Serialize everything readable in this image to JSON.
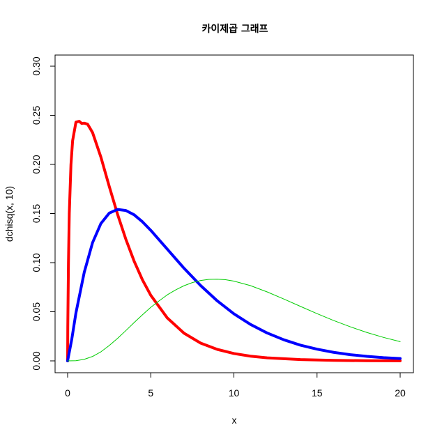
{
  "chart_data": {
    "type": "line",
    "title": "카이제곱 그래프",
    "xlabel": "x",
    "ylabel": "dchisq(x, 10)",
    "xlim": [
      0,
      20
    ],
    "ylim": [
      0,
      0.3
    ],
    "x_ticks": [
      "0",
      "5",
      "10",
      "15",
      "20"
    ],
    "y_ticks": [
      "0.00",
      "0.05",
      "0.10",
      "0.15",
      "0.20",
      "0.25",
      "0.30"
    ],
    "grid": false,
    "legend": "none",
    "series": [
      {
        "color": "#ff0000",
        "line_width": "thick",
        "x": [
          0,
          0.01,
          0.05,
          0.1,
          0.2,
          0.3,
          0.5,
          0.7,
          0.85,
          1.0,
          1.2,
          1.5,
          2.0,
          2.5,
          3.0,
          3.5,
          4.0,
          4.5,
          5.0,
          6.0,
          7.0,
          8.0,
          9.0,
          10.0,
          11.0,
          12.0,
          14.0,
          16.0,
          18.0,
          20.0
        ],
        "y": [
          0,
          0.0347,
          0.0992,
          0.1504,
          0.1997,
          0.2241,
          0.243,
          0.2439,
          0.2417,
          0.242,
          0.241,
          0.2324,
          0.2075,
          0.1778,
          0.1494,
          0.1239,
          0.1015,
          0.0825,
          0.0668,
          0.0436,
          0.0282,
          0.0181,
          0.0117,
          0.0075,
          0.0048,
          0.0031,
          0.0013,
          0.0005,
          0.0002,
          0.0001
        ]
      },
      {
        "color": "#0000ff",
        "line_width": "thick",
        "x": [
          0,
          0.25,
          0.5,
          1.0,
          1.5,
          2.0,
          2.5,
          3.0,
          3.5,
          4.0,
          4.5,
          5.0,
          6.0,
          7.0,
          8.0,
          9.0,
          10.0,
          11.0,
          12.0,
          13.0,
          14.0,
          15.0,
          16.0,
          17.0,
          18.0,
          19.0,
          20.0
        ],
        "y": [
          0,
          0.0221,
          0.0488,
          0.0902,
          0.1204,
          0.1398,
          0.1504,
          0.1542,
          0.1531,
          0.1487,
          0.1416,
          0.1329,
          0.1136,
          0.0943,
          0.0767,
          0.0611,
          0.0479,
          0.0371,
          0.0284,
          0.0215,
          0.016,
          0.0119,
          0.0087,
          0.0063,
          0.0046,
          0.0033,
          0.0024
        ]
      },
      {
        "color": "#00cc00",
        "line_width": "thin",
        "x": [
          0,
          0.5,
          1.0,
          1.5,
          2.0,
          2.5,
          3.0,
          3.5,
          4.0,
          4.5,
          5.0,
          5.5,
          6.0,
          6.5,
          7.0,
          7.5,
          8.0,
          8.5,
          9.0,
          9.5,
          10.0,
          11.0,
          12.0,
          13.0,
          14.0,
          15.0,
          16.0,
          17.0,
          18.0,
          19.0,
          20.0
        ],
        "y": [
          0,
          0.0002,
          0.0016,
          0.0045,
          0.0092,
          0.0156,
          0.0229,
          0.0308,
          0.039,
          0.0469,
          0.0545,
          0.0611,
          0.0673,
          0.0723,
          0.0765,
          0.0797,
          0.0818,
          0.083,
          0.0832,
          0.0826,
          0.0812,
          0.0766,
          0.0702,
          0.063,
          0.0555,
          0.0481,
          0.0411,
          0.0347,
          0.0289,
          0.0239,
          0.0196
        ]
      }
    ]
  }
}
